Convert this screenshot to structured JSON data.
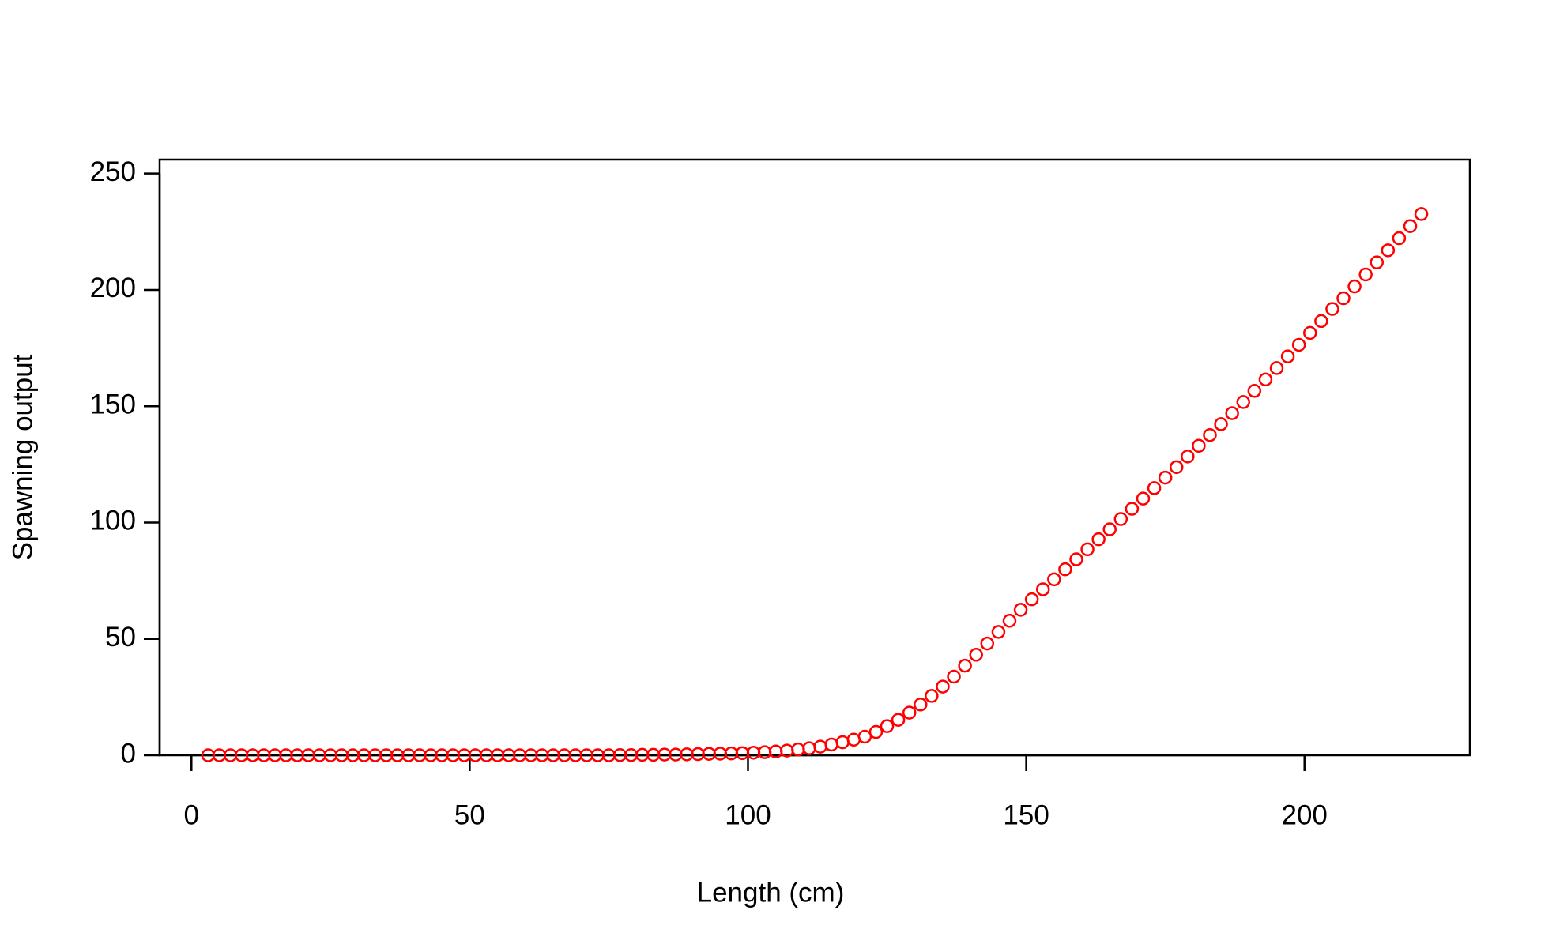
{
  "chart_data": {
    "type": "scatter",
    "xlabel": "Length (cm)",
    "ylabel": "Spawning output",
    "x": [
      3,
      5,
      7,
      9,
      11,
      13,
      15,
      17,
      19,
      21,
      23,
      25,
      27,
      29,
      31,
      33,
      35,
      37,
      39,
      41,
      43,
      45,
      47,
      49,
      51,
      53,
      55,
      57,
      59,
      61,
      63,
      65,
      67,
      69,
      71,
      73,
      75,
      77,
      79,
      81,
      83,
      85,
      87,
      89,
      91,
      93,
      95,
      97,
      99,
      101,
      103,
      105,
      107,
      109,
      111,
      113,
      115,
      117,
      119,
      121,
      123,
      125,
      127,
      129,
      131,
      133,
      135,
      137,
      139,
      141,
      143,
      145,
      147,
      149,
      151,
      153,
      155,
      157,
      159,
      161,
      163,
      165,
      167,
      169,
      171,
      173,
      175,
      177,
      179,
      181,
      183,
      185,
      187,
      189,
      191,
      193,
      195,
      197,
      199,
      201,
      203,
      205,
      207,
      209,
      211,
      213,
      215,
      217,
      219,
      221
    ],
    "values": [
      0,
      0,
      0,
      0,
      0,
      0,
      0,
      0,
      0,
      0,
      0,
      0,
      0,
      0,
      0,
      0,
      0,
      0,
      0,
      0,
      0,
      0,
      0,
      0,
      0,
      0,
      0,
      0,
      0,
      0,
      0,
      0,
      0,
      0,
      0,
      0,
      0,
      0.1,
      0.1,
      0.2,
      0.2,
      0.3,
      0.3,
      0.4,
      0.5,
      0.6,
      0.7,
      0.8,
      0.9,
      1.1,
      1.3,
      1.6,
      2.0,
      2.5,
      3.0,
      3.7,
      4.6,
      5.6,
      6.7,
      8.0,
      10.0,
      12.5,
      15.2,
      18.3,
      21.8,
      25.5,
      29.5,
      33.8,
      38.5,
      43.2,
      48.0,
      53.0,
      57.8,
      62.5,
      67.0,
      71.3,
      75.6,
      79.9,
      84.2,
      88.5,
      92.8,
      97.1,
      101.5,
      105.9,
      110.3,
      114.8,
      119.3,
      123.8,
      128.4,
      133.0,
      137.6,
      142.3,
      147.0,
      151.8,
      156.6,
      161.5,
      166.4,
      171.4,
      176.4,
      181.5,
      186.6,
      191.8,
      196.4,
      201.5,
      206.6,
      211.8,
      217.0,
      222.2,
      227.4,
      232.6
    ],
    "color": "#ff0000",
    "xlim": [
      -5.72,
      229.72
    ],
    "ylim": [
      0,
      256
    ],
    "xticks": [
      0,
      50,
      100,
      150,
      200
    ],
    "yticks": [
      0,
      50,
      100,
      150,
      200,
      250
    ]
  }
}
